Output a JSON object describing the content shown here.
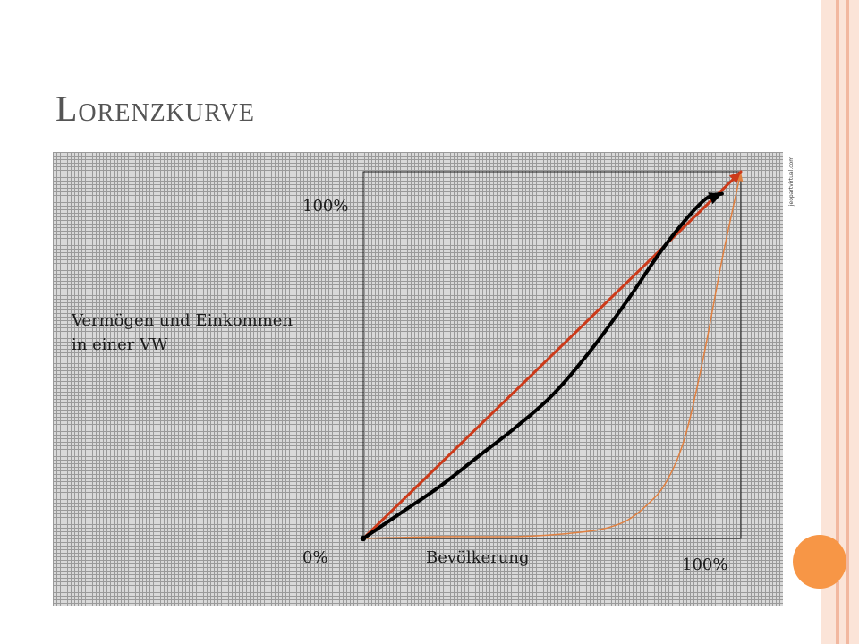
{
  "slide": {
    "title": "Lorenzkurve",
    "watermark": "jeopartvirtual.com",
    "colors": {
      "stripe_light": "#fbe4d8",
      "stripe_mid": "#f2b8a0",
      "accent_circle": "#f79646",
      "grid_bg": "#d9d9d9",
      "grid_line": "#9a9a9a"
    }
  },
  "chart_data": {
    "type": "line",
    "title": "",
    "xlabel": "Bevölkerung",
    "ylabel": "Vermögen und Einkommen in einer VW",
    "ylabel_lines": [
      "Vermögen und Einkommen",
      "in einer VW"
    ],
    "x_tick_labels": {
      "min": "0%",
      "max": "100%"
    },
    "y_tick_labels": {
      "min": "0%",
      "max": "100%"
    },
    "xlim": [
      0,
      100
    ],
    "ylim": [
      0,
      100
    ],
    "grid": true,
    "series": [
      {
        "color": "#cc3a1a",
        "stroke_width": 3,
        "x": [
          0,
          100
        ],
        "y": [
          0,
          100
        ]
      },
      {
        "color": "#000000",
        "stroke_width": 4,
        "x": [
          0,
          10,
          20,
          30,
          40,
          50,
          60,
          70,
          80,
          90,
          95
        ],
        "y": [
          0,
          7,
          14,
          22,
          30,
          39,
          51,
          65,
          80,
          92,
          94
        ]
      },
      {
        "color": "#e08040",
        "stroke_width": 1.5,
        "x": [
          0,
          20,
          40,
          50,
          60,
          65,
          70,
          75,
          80,
          85,
          90,
          95,
          100
        ],
        "y": [
          0,
          0.5,
          0.5,
          1,
          2,
          3,
          5,
          9,
          15,
          27,
          49,
          76,
          100
        ]
      }
    ]
  }
}
